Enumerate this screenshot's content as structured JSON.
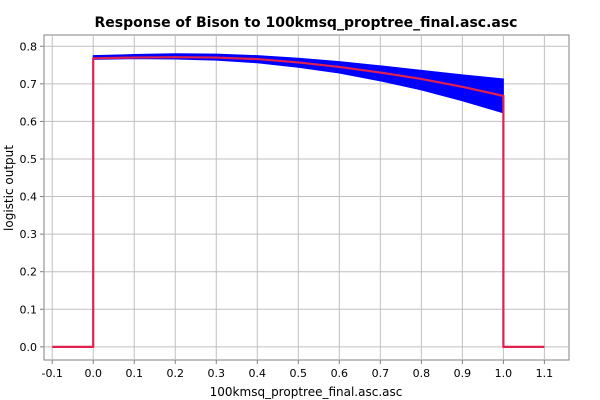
{
  "chart_data": {
    "type": "line",
    "title": "Response of Bison to 100kmsq_proptree_final.asc.asc",
    "xlabel": "100kmsq_proptree_final.asc.asc",
    "ylabel": "logistic output",
    "xlim": [
      -0.12,
      1.16
    ],
    "ylim": [
      -0.035,
      0.83
    ],
    "xticks": [
      -0.1,
      0.0,
      0.1,
      0.2,
      0.3,
      0.4,
      0.5,
      0.6,
      0.7,
      0.8,
      0.9,
      1.0,
      1.1
    ],
    "xtick_labels": [
      "-0.1",
      "0.0",
      "0.1",
      "0.2",
      "0.3",
      "0.4",
      "0.5",
      "0.6",
      "0.7",
      "0.8",
      "0.9",
      "1.0",
      "1.1"
    ],
    "yticks": [
      0.0,
      0.1,
      0.2,
      0.3,
      0.4,
      0.5,
      0.6,
      0.7,
      0.8
    ],
    "ytick_labels": [
      "0.0",
      "0.1",
      "0.2",
      "0.3",
      "0.4",
      "0.5",
      "0.6",
      "0.7",
      "0.8"
    ],
    "grid": true,
    "series": [
      {
        "role": "mean",
        "color": "#e0204f",
        "x": [
          -0.1,
          0.0,
          0.0,
          0.1,
          0.2,
          0.3,
          0.4,
          0.5,
          0.6,
          0.7,
          0.8,
          0.9,
          1.0,
          1.0,
          1.1
        ],
        "y": [
          0.0,
          0.0,
          0.768,
          0.77,
          0.771,
          0.77,
          0.766,
          0.757,
          0.745,
          0.73,
          0.713,
          0.692,
          0.668,
          0.0,
          0.0
        ]
      }
    ],
    "band": {
      "color": "#0000ff",
      "x": [
        0.0,
        0.1,
        0.2,
        0.3,
        0.4,
        0.5,
        0.6,
        0.7,
        0.8,
        0.9,
        1.0
      ],
      "upper": [
        0.775,
        0.778,
        0.78,
        0.779,
        0.775,
        0.768,
        0.759,
        0.748,
        0.736,
        0.724,
        0.713
      ],
      "lower": [
        0.765,
        0.767,
        0.766,
        0.763,
        0.756,
        0.744,
        0.729,
        0.708,
        0.684,
        0.655,
        0.623
      ]
    }
  }
}
